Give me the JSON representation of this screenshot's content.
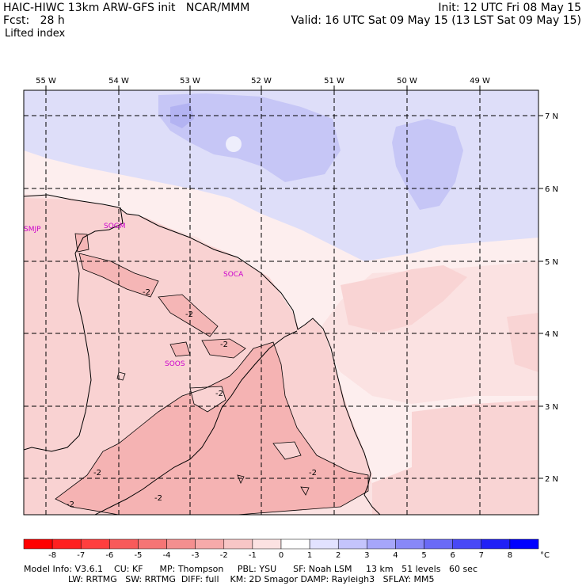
{
  "header": {
    "line1_left": "HAIC-HIWC 13km ARW-GFS init   NCAR/MMM",
    "line2_left": "Fcst:   28 h",
    "line3_left": "Lifted index",
    "line1_right": "Init: 12 UTC Fri 08 May 15",
    "line2_right": "Valid: 16 UTC Sat 09 May 15 (13 LST Sat 09 May 15)"
  },
  "map": {
    "lon_labels": [
      "55 W",
      "54 W",
      "53 W",
      "52 W",
      "51 W",
      "50 W",
      "49 W"
    ],
    "lat_labels": [
      "7 N",
      "6 N",
      "5 N",
      "4 N",
      "3 N",
      "2 N"
    ],
    "stations": [
      "SMJP",
      "SOGM",
      "SOCA",
      "SOOS"
    ],
    "contour_label": "-2",
    "colors": {
      "ocean_light": "#fbe2e2",
      "pink_very_light": "#fce8e8",
      "pink_light": "#f8cece",
      "pink_medium": "#f4b0b0",
      "blue_light": "#dcdcf8",
      "blue_medium": "#c4c4f6",
      "station": "#cc00cc"
    }
  },
  "colorbar": {
    "labels": [
      "-8",
      "-7",
      "-6",
      "-5",
      "-4",
      "-3",
      "-2",
      "-1",
      "0",
      "1",
      "2",
      "3",
      "4",
      "5",
      "6",
      "7",
      "8"
    ],
    "unit": "°C",
    "colors": [
      "#ff0000",
      "#ff2020",
      "#ff3e3e",
      "#f85a5a",
      "#f57575",
      "#f48f8f",
      "#f6aaaa",
      "#f8c6c6",
      "#fce2e2",
      "#ffffff",
      "#e2e2ff",
      "#c4c4fc",
      "#a6a6fa",
      "#8888f8",
      "#6a6af6",
      "#4848f6",
      "#2020f6",
      "#0000ff"
    ]
  },
  "footer": {
    "line1": "Model Info: V3.6.1    CU: KF      MP: Thompson     PBL: YSU      SF: Noah LSM     13 km   51 levels   60 sec",
    "line2": "                LW: RRTMG   SW: RRTMG  DIFF: full    KM: 2D Smagor DAMP: Rayleigh3   SFLAY: MM5"
  }
}
